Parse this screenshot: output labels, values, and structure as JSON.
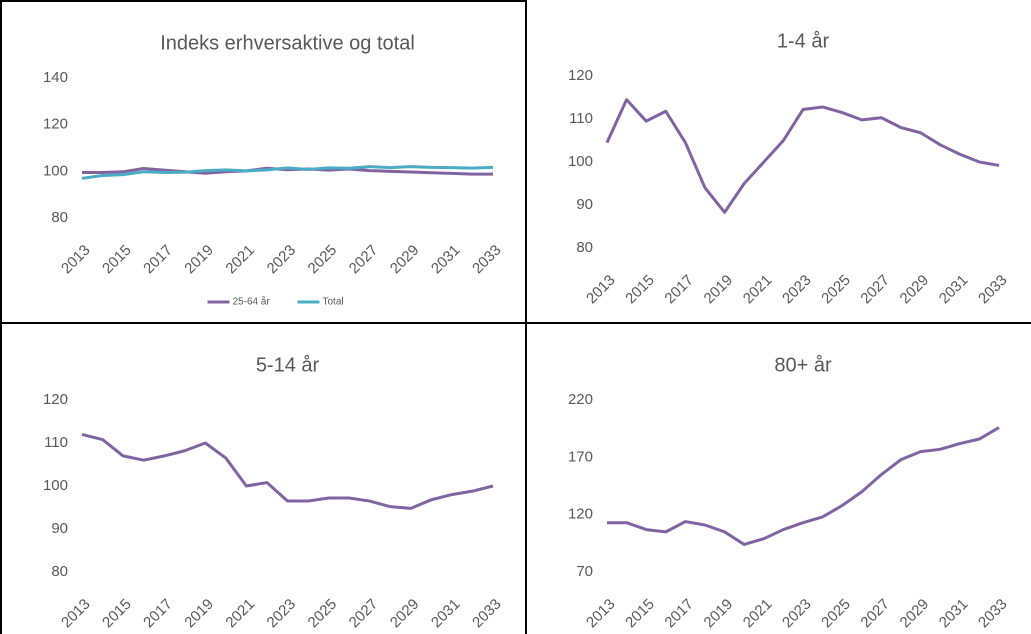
{
  "chart_data": [
    {
      "type": "line",
      "title": "Indeks erhversaktive og total",
      "x": [
        2013,
        2014,
        2015,
        2016,
        2017,
        2018,
        2019,
        2020,
        2021,
        2022,
        2023,
        2024,
        2025,
        2026,
        2027,
        2028,
        2029,
        2030,
        2031,
        2032,
        2033
      ],
      "xlim": [
        2013,
        2033
      ],
      "xticks": [
        2013,
        2015,
        2017,
        2019,
        2021,
        2023,
        2025,
        2027,
        2029,
        2031,
        2033
      ],
      "ylim": [
        80,
        140
      ],
      "yticks": [
        80,
        100,
        120,
        140
      ],
      "legend": "bottom",
      "series": [
        {
          "name": "25-64 år",
          "color": "#8064a2",
          "values": [
            99.5,
            99.5,
            99.8,
            101.2,
            100.5,
            99.8,
            99.2,
            99.8,
            100.2,
            101.3,
            100.7,
            101,
            100.5,
            101,
            100.3,
            100,
            99.7,
            99.4,
            99.1,
            98.8,
            98.8
          ]
        },
        {
          "name": "Total",
          "color": "#4bacc6",
          "values": [
            97,
            98.2,
            98.6,
            99.8,
            99.5,
            99.6,
            100.3,
            100.6,
            100.2,
            100.6,
            101.5,
            100.8,
            101.5,
            101.3,
            102,
            101.6,
            102,
            101.7,
            101.6,
            101.4,
            101.7
          ]
        }
      ]
    },
    {
      "type": "line",
      "title": "1-4 år",
      "x": [
        2013,
        2014,
        2015,
        2016,
        2017,
        2018,
        2019,
        2020,
        2021,
        2022,
        2023,
        2024,
        2025,
        2026,
        2027,
        2028,
        2029,
        2030,
        2031,
        2032,
        2033
      ],
      "xlim": [
        2013,
        2033
      ],
      "xticks": [
        2013,
        2015,
        2017,
        2019,
        2021,
        2023,
        2025,
        2027,
        2029,
        2031,
        2033
      ],
      "ylim": [
        80,
        120
      ],
      "yticks": [
        80,
        90,
        100,
        110,
        120
      ],
      "series": [
        {
          "color": "#8064a2",
          "values": [
            104.5,
            114.5,
            109.5,
            111.8,
            104.5,
            94,
            88.3,
            95,
            100,
            105,
            112.2,
            112.8,
            111.5,
            109.8,
            110.3,
            108,
            106.8,
            104,
            101.8,
            100,
            99.2
          ]
        }
      ]
    },
    {
      "type": "line",
      "title": "5-14 år",
      "x": [
        2013,
        2014,
        2015,
        2016,
        2017,
        2018,
        2019,
        2020,
        2021,
        2022,
        2023,
        2024,
        2025,
        2026,
        2027,
        2028,
        2029,
        2030,
        2031,
        2032,
        2033
      ],
      "xlim": [
        2013,
        2033
      ],
      "xticks": [
        2013,
        2015,
        2017,
        2019,
        2021,
        2023,
        2025,
        2027,
        2029,
        2031,
        2033
      ],
      "ylim": [
        80,
        120
      ],
      "yticks": [
        80,
        90,
        100,
        110,
        120
      ],
      "series": [
        {
          "color": "#8064a2",
          "values": [
            112,
            110.8,
            107,
            106,
            107,
            108.2,
            110,
            106.5,
            100,
            100.8,
            96.5,
            96.5,
            97.2,
            97.2,
            96.5,
            95.2,
            94.8,
            96.8,
            98,
            98.8,
            100
          ]
        }
      ]
    },
    {
      "type": "line",
      "title": "80+ år",
      "x": [
        2013,
        2014,
        2015,
        2016,
        2017,
        2018,
        2019,
        2020,
        2021,
        2022,
        2023,
        2024,
        2025,
        2026,
        2027,
        2028,
        2029,
        2030,
        2031,
        2032,
        2033
      ],
      "xlim": [
        2013,
        2033
      ],
      "xticks": [
        2013,
        2015,
        2017,
        2019,
        2021,
        2023,
        2025,
        2027,
        2029,
        2031,
        2033
      ],
      "ylim": [
        70,
        220
      ],
      "yticks": [
        70,
        120,
        170,
        220
      ],
      "series": [
        {
          "color": "#8064a2",
          "values": [
            113,
            113,
            107,
            105,
            114,
            111,
            105,
            94,
            99,
            107,
            113,
            118,
            128,
            140,
            155,
            168,
            175,
            177,
            182,
            186,
            196
          ]
        }
      ]
    }
  ]
}
